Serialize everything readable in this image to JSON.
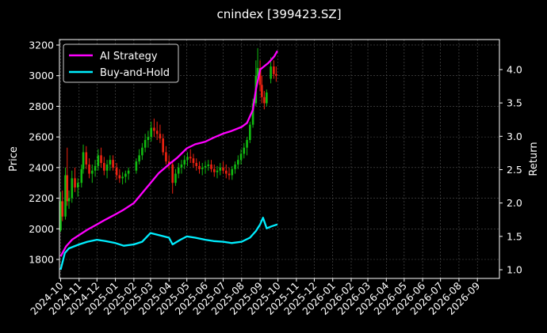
{
  "chart_data": {
    "type": "line",
    "title": "cnindex [399423.SZ]",
    "xlabel": "",
    "ylabel": "Price",
    "y2label": "Return",
    "x_ticks": [
      "2024-10",
      "2024-11",
      "2024-12",
      "2025-01",
      "2025-02",
      "2025-03",
      "2025-04",
      "2025-05",
      "2025-06",
      "2025-07",
      "2025-08",
      "2025-09",
      "2025-10",
      "2025-11",
      "2025-12",
      "2026-01",
      "2026-02",
      "2026-03",
      "2026-04",
      "2026-05",
      "2026-06",
      "2026-07",
      "2026-08",
      "2026-09"
    ],
    "xlim": [
      "2024-09-29",
      "2026-10-08"
    ],
    "ylim": [
      1676,
      3236
    ],
    "yticks": [
      1800,
      2000,
      2200,
      2400,
      2600,
      2800,
      3000,
      3200
    ],
    "y2lim": [
      0.87,
      4.45
    ],
    "y2ticks": [
      "1.0",
      "1.5",
      "2.0",
      "2.5",
      "3.0",
      "3.5",
      "4.0"
    ],
    "grid": true,
    "legend_position": "top-left",
    "colors": {
      "up": "#11bb11",
      "down": "#ee2211",
      "ai": "#ff00ff",
      "bh": "#00eeff"
    },
    "price_ohlc": [
      [
        "2024-10-01",
        1990,
        2240,
        1980,
        2180
      ],
      [
        "2024-10-04",
        2180,
        2250,
        2050,
        2080
      ],
      [
        "2024-10-09",
        2080,
        2400,
        2060,
        2350
      ],
      [
        "2024-10-12",
        2350,
        2530,
        2150,
        2180
      ],
      [
        "2024-10-15",
        2180,
        2250,
        2130,
        2200
      ],
      [
        "2024-10-20",
        2200,
        2380,
        2170,
        2330
      ],
      [
        "2024-10-25",
        2330,
        2400,
        2240,
        2270
      ],
      [
        "2024-10-30",
        2270,
        2330,
        2210,
        2300
      ],
      [
        "2024-11-05",
        2300,
        2420,
        2270,
        2390
      ],
      [
        "2024-11-08",
        2390,
        2550,
        2360,
        2500
      ],
      [
        "2024-11-13",
        2500,
        2540,
        2390,
        2420
      ],
      [
        "2024-11-18",
        2420,
        2460,
        2330,
        2360
      ],
      [
        "2024-11-23",
        2360,
        2420,
        2300,
        2380
      ],
      [
        "2024-11-28",
        2380,
        2450,
        2340,
        2410
      ],
      [
        "2024-12-03",
        2410,
        2520,
        2380,
        2480
      ],
      [
        "2024-12-08",
        2480,
        2530,
        2400,
        2430
      ],
      [
        "2024-12-13",
        2430,
        2470,
        2350,
        2380
      ],
      [
        "2024-12-18",
        2380,
        2450,
        2330,
        2420
      ],
      [
        "2024-12-23",
        2420,
        2480,
        2380,
        2450
      ],
      [
        "2024-12-28",
        2450,
        2480,
        2380,
        2400
      ],
      [
        "2025-01-03",
        2400,
        2430,
        2320,
        2350
      ],
      [
        "2025-01-08",
        2350,
        2390,
        2300,
        2330
      ],
      [
        "2025-01-13",
        2330,
        2370,
        2290,
        2340
      ],
      [
        "2025-01-18",
        2340,
        2380,
        2300,
        2360
      ],
      [
        "2025-01-23",
        2360,
        2400,
        2320,
        2380
      ],
      [
        "2025-02-05",
        2380,
        2460,
        2360,
        2440
      ],
      [
        "2025-02-10",
        2440,
        2520,
        2420,
        2480
      ],
      [
        "2025-02-15",
        2480,
        2560,
        2450,
        2530
      ],
      [
        "2025-02-20",
        2530,
        2620,
        2500,
        2580
      ],
      [
        "2025-02-25",
        2580,
        2640,
        2530,
        2600
      ],
      [
        "2025-03-02",
        2600,
        2700,
        2570,
        2660
      ],
      [
        "2025-03-07",
        2660,
        2720,
        2600,
        2640
      ],
      [
        "2025-03-12",
        2640,
        2700,
        2580,
        2620
      ],
      [
        "2025-03-17",
        2620,
        2680,
        2560,
        2590
      ],
      [
        "2025-03-22",
        2590,
        2620,
        2480,
        2500
      ],
      [
        "2025-03-27",
        2500,
        2540,
        2420,
        2440
      ],
      [
        "2025-04-01",
        2440,
        2480,
        2390,
        2420
      ],
      [
        "2025-04-07",
        2420,
        2440,
        2230,
        2300
      ],
      [
        "2025-04-12",
        2300,
        2390,
        2280,
        2360
      ],
      [
        "2025-04-17",
        2360,
        2430,
        2330,
        2400
      ],
      [
        "2025-04-22",
        2400,
        2450,
        2360,
        2420
      ],
      [
        "2025-04-27",
        2420,
        2480,
        2390,
        2450
      ],
      [
        "2025-05-02",
        2450,
        2500,
        2410,
        2470
      ],
      [
        "2025-05-07",
        2470,
        2520,
        2430,
        2460
      ],
      [
        "2025-05-12",
        2460,
        2490,
        2400,
        2430
      ],
      [
        "2025-05-17",
        2430,
        2460,
        2380,
        2410
      ],
      [
        "2025-05-22",
        2410,
        2440,
        2360,
        2390
      ],
      [
        "2025-05-27",
        2390,
        2430,
        2350,
        2400
      ],
      [
        "2025-06-01",
        2400,
        2440,
        2360,
        2410
      ],
      [
        "2025-06-06",
        2410,
        2450,
        2380,
        2420
      ],
      [
        "2025-06-11",
        2420,
        2450,
        2370,
        2390
      ],
      [
        "2025-06-16",
        2390,
        2420,
        2340,
        2370
      ],
      [
        "2025-06-21",
        2370,
        2410,
        2330,
        2380
      ],
      [
        "2025-06-26",
        2380,
        2430,
        2350,
        2400
      ],
      [
        "2025-07-01",
        2400,
        2440,
        2360,
        2380
      ],
      [
        "2025-07-06",
        2380,
        2420,
        2330,
        2360
      ],
      [
        "2025-07-11",
        2360,
        2400,
        2320,
        2350
      ],
      [
        "2025-07-16",
        2350,
        2410,
        2320,
        2390
      ],
      [
        "2025-07-21",
        2390,
        2440,
        2360,
        2420
      ],
      [
        "2025-07-26",
        2420,
        2480,
        2390,
        2450
      ],
      [
        "2025-07-31",
        2450,
        2520,
        2420,
        2490
      ],
      [
        "2025-08-05",
        2490,
        2560,
        2460,
        2530
      ],
      [
        "2025-08-10",
        2530,
        2600,
        2480,
        2580
      ],
      [
        "2025-08-15",
        2580,
        2700,
        2560,
        2680
      ],
      [
        "2025-08-20",
        2680,
        2850,
        2660,
        2820
      ],
      [
        "2025-08-25",
        2820,
        3100,
        2800,
        3000
      ],
      [
        "2025-08-28",
        3000,
        3180,
        2950,
        3050
      ],
      [
        "2025-09-01",
        3050,
        3100,
        2900,
        2940
      ],
      [
        "2025-09-04",
        2940,
        3000,
        2820,
        2860
      ],
      [
        "2025-09-08",
        2860,
        2900,
        2780,
        2820
      ],
      [
        "2025-09-12",
        2820,
        2910,
        2800,
        2890
      ],
      [
        "2025-09-19",
        2980,
        3120,
        2950,
        3060
      ],
      [
        "2025-09-24",
        3060,
        3100,
        2980,
        3010
      ],
      [
        "2025-09-28",
        3010,
        3060,
        2960,
        3000
      ]
    ],
    "series": [
      {
        "name": "AI Strategy",
        "x": [
          "2024-10-01",
          "2024-10-10",
          "2024-10-20",
          "2024-11-01",
          "2024-11-15",
          "2024-12-01",
          "2024-12-15",
          "2025-01-01",
          "2025-01-15",
          "2025-02-01",
          "2025-02-15",
          "2025-03-01",
          "2025-03-15",
          "2025-04-01",
          "2025-04-15",
          "2025-05-01",
          "2025-05-15",
          "2025-06-01",
          "2025-06-15",
          "2025-07-01",
          "2025-07-15",
          "2025-08-01",
          "2025-08-10",
          "2025-08-20",
          "2025-08-25",
          "2025-09-01",
          "2025-09-08",
          "2025-09-15",
          "2025-09-20",
          "2025-09-25",
          "2025-09-30"
        ],
        "values": [
          1.2,
          1.35,
          1.45,
          1.52,
          1.6,
          1.68,
          1.75,
          1.83,
          1.9,
          2.0,
          2.15,
          2.3,
          2.45,
          2.58,
          2.68,
          2.82,
          2.88,
          2.92,
          2.98,
          3.04,
          3.08,
          3.14,
          3.2,
          3.4,
          3.7,
          4.0,
          4.05,
          4.1,
          4.15,
          4.2,
          4.28
        ]
      },
      {
        "name": "Buy-and-Hold",
        "x": [
          "2024-10-01",
          "2024-10-08",
          "2024-10-15",
          "2024-11-01",
          "2024-11-15",
          "2024-12-01",
          "2024-12-15",
          "2025-01-01",
          "2025-01-15",
          "2025-02-01",
          "2025-02-15",
          "2025-03-01",
          "2025-03-15",
          "2025-04-01",
          "2025-04-07",
          "2025-04-20",
          "2025-05-01",
          "2025-05-15",
          "2025-06-01",
          "2025-06-15",
          "2025-07-01",
          "2025-07-15",
          "2025-08-01",
          "2025-08-15",
          "2025-08-25",
          "2025-09-01",
          "2025-09-06",
          "2025-09-12",
          "2025-09-20",
          "2025-09-30"
        ],
        "values": [
          1.0,
          1.25,
          1.32,
          1.38,
          1.42,
          1.45,
          1.43,
          1.4,
          1.36,
          1.38,
          1.42,
          1.55,
          1.52,
          1.48,
          1.38,
          1.45,
          1.5,
          1.48,
          1.45,
          1.43,
          1.42,
          1.4,
          1.42,
          1.48,
          1.58,
          1.68,
          1.78,
          1.62,
          1.65,
          1.68
        ]
      }
    ]
  }
}
